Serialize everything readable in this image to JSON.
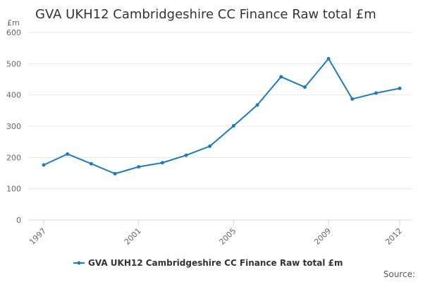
{
  "chart_data": {
    "type": "line",
    "title": "GVA UKH12 Cambridgeshire CC Finance Raw total £m",
    "y_unit_label": "£m",
    "xlabel": "",
    "ylabel": "",
    "xlim": [
      1997,
      2012
    ],
    "ylim": [
      0,
      600
    ],
    "y_ticks": [
      0,
      100,
      200,
      300,
      400,
      500,
      600
    ],
    "x_ticks": [
      1997,
      2001,
      2005,
      2009,
      2012
    ],
    "grid": true,
    "legend_position": "bottom",
    "series": [
      {
        "name": "GVA UKH12 Cambridgeshire CC Finance Raw total £m",
        "color": "#1f7bbd",
        "x": [
          1997,
          1998,
          1999,
          2000,
          2001,
          2002,
          2003,
          2004,
          2005,
          2006,
          2007,
          2008,
          2009,
          2010,
          2011,
          2012
        ],
        "values": [
          176,
          211,
          180,
          148,
          170,
          183,
          207,
          236,
          301,
          368,
          458,
          425,
          516,
          387,
          406,
          421
        ]
      }
    ]
  },
  "footer": {
    "source_label": "Source:"
  }
}
